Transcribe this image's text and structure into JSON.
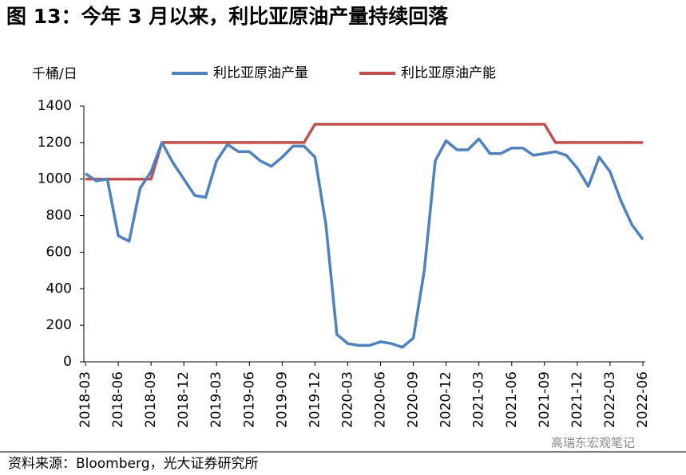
{
  "chart_data": {
    "type": "line",
    "title": "图 13：今年 3 月以来，利比亚原油产量持续回落",
    "y_label": "千桶/日",
    "source": "资料来源：Bloomberg，光大证券研究所",
    "watermark": "高瑞东宏观笔记",
    "categories": [
      "2018-03",
      null,
      null,
      "2018-06",
      null,
      null,
      "2018-09",
      null,
      null,
      "2018-12",
      null,
      null,
      "2019-03",
      null,
      null,
      "2019-06",
      null,
      null,
      "2019-09",
      null,
      null,
      "2019-12",
      null,
      null,
      "2020-03",
      null,
      null,
      "2020-06",
      null,
      null,
      "2020-09",
      null,
      null,
      "2020-12",
      null,
      null,
      "2021-03",
      null,
      null,
      "2021-06",
      null,
      null,
      "2021-09",
      null,
      null,
      "2021-12",
      null,
      null,
      "2022-03",
      null,
      null,
      "2022-06"
    ],
    "series": [
      {
        "name": "利比亚原油产量",
        "color": "#4f81bd",
        "values": [
          1030,
          990,
          1000,
          690,
          660,
          950,
          1040,
          1200,
          1090,
          1000,
          910,
          900,
          1100,
          1190,
          1150,
          1150,
          1100,
          1070,
          1120,
          1180,
          1180,
          1120,
          750,
          150,
          100,
          90,
          90,
          110,
          100,
          80,
          130,
          500,
          1100,
          1210,
          1160,
          1160,
          1220,
          1140,
          1140,
          1170,
          1170,
          1130,
          1140,
          1150,
          1130,
          1060,
          960,
          1120,
          1040,
          880,
          750,
          670
        ]
      },
      {
        "name": "利比亚原油产能",
        "color": "#c0504d",
        "values": [
          1000,
          1000,
          1000,
          1000,
          1000,
          1000,
          1000,
          1200,
          1200,
          1200,
          1200,
          1200,
          1200,
          1200,
          1200,
          1200,
          1200,
          1200,
          1200,
          1200,
          1200,
          1300,
          1300,
          1300,
          1300,
          1300,
          1300,
          1300,
          1300,
          1300,
          1300,
          1300,
          1300,
          1300,
          1300,
          1300,
          1300,
          1300,
          1300,
          1300,
          1300,
          1300,
          1300,
          1200,
          1200,
          1200,
          1200,
          1200,
          1200,
          1200,
          1200,
          1200
        ]
      }
    ],
    "ylim": [
      0,
      1400
    ],
    "yticks": [
      0,
      200,
      400,
      600,
      800,
      1000,
      1200,
      1400
    ],
    "legend": "top"
  }
}
